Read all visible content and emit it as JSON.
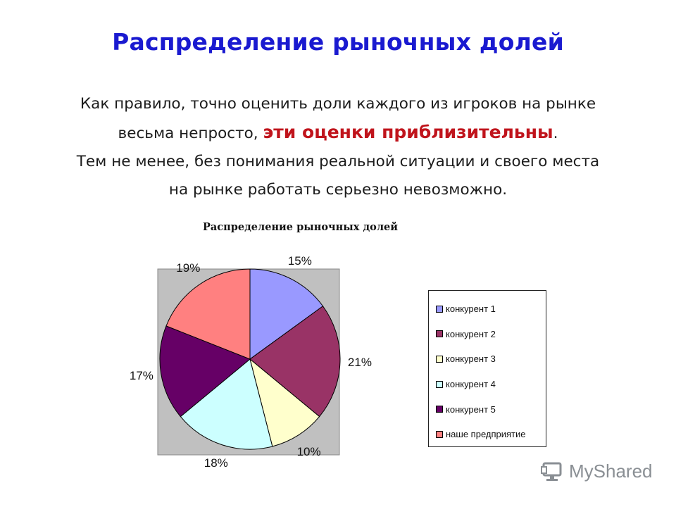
{
  "slide": {
    "title": "Распределение рыночных долей",
    "body_line1": "Как правило, точно оценить доли каждого из игроков на рынке",
    "body_line2_pre": "весьма непросто, ",
    "body_line2_emph": "эти оценки приблизительны",
    "body_line2_post": ".",
    "body_line3": "Тем не менее, без понимания реальной ситуации и своего места",
    "body_line4": "на рынке работать серьезно невозможно.",
    "accent_title": "#1a1ad0",
    "accent_emph": "#c0141c"
  },
  "chart_data": {
    "type": "pie",
    "title": "Распределение рыночных долей",
    "categories": [
      "конкурент 1",
      "конкурент 2",
      "конкурент 3",
      "конкурент 4",
      "конкурент 5",
      "наше предприятие"
    ],
    "values": [
      15,
      21,
      10,
      18,
      17,
      19
    ],
    "labels": [
      "15%",
      "21%",
      "10%",
      "18%",
      "17%",
      "19%"
    ],
    "colors": [
      "#9999ff",
      "#993366",
      "#ffffcc",
      "#ccffff",
      "#660066",
      "#ff8080"
    ],
    "plot_background": "#c0c0c0",
    "legend_position": "right"
  },
  "watermark": {
    "text": "MyShared"
  }
}
